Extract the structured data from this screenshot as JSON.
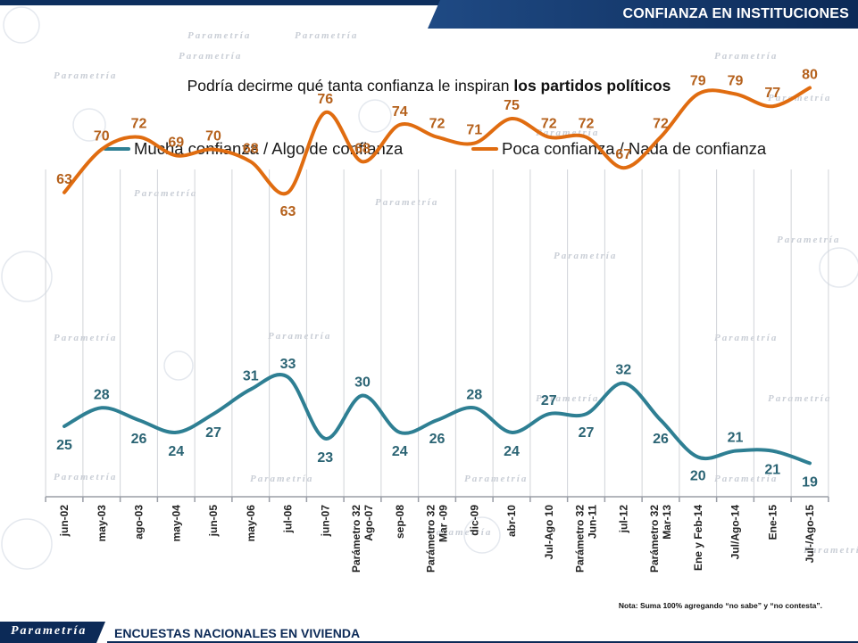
{
  "header": {
    "title": "CONFIANZA EN INSTITUCIONES"
  },
  "question": {
    "prefix": "Podría decirme qué tanta confianza le inspiran ",
    "bold": "los partidos políticos"
  },
  "legend": {
    "series1": "Mucha confianza / Algo de confianza",
    "series2": "Poca confianza / Nada de confianza"
  },
  "colors": {
    "series1": "#2e7f93",
    "series2": "#e06c10",
    "header": "#0c2a57"
  },
  "note": "Nota: Suma 100%  agregando “no sabe” y “no contesta”.",
  "footer": {
    "logo": "Parametría",
    "text": "ENCUESTAS NACIONALES EN VIVIENDA"
  },
  "watermark": "Parametría",
  "chart_data": {
    "type": "line",
    "title": "Podría decirme qué tanta confianza le inspiran los partidos políticos",
    "xlabel": "",
    "ylabel": "",
    "categories": [
      "jun-02",
      "may-03",
      "ago-03",
      "may-04",
      "jun-05",
      "may-06",
      "jul-06",
      "jun-07",
      "Parámetro 32 Ago-07",
      "sep-08",
      "Parámetro 32 Mar -09",
      "dic-09",
      "abr-10",
      "Jul-Ago 10",
      "Parámetro 32 Jun-11",
      "jul-12",
      "Parámetro 32 Mar-13",
      "Ene y Feb-14",
      "Jul/Ago-14",
      "Ene-15",
      "Jul-/Ago-15"
    ],
    "series": [
      {
        "name": "Mucha confianza / Algo de confianza",
        "values": [
          25,
          28,
          26,
          24,
          27,
          31,
          33,
          23,
          30,
          24,
          26,
          28,
          24,
          27,
          27,
          32,
          26,
          20,
          21,
          21,
          19
        ]
      },
      {
        "name": "Poca confianza / Nada de confianza",
        "values": [
          63,
          70,
          72,
          69,
          70,
          68,
          63,
          76,
          68,
          74,
          72,
          71,
          75,
          72,
          72,
          67,
          72,
          79,
          79,
          77,
          80
        ]
      }
    ],
    "grid": "vertical",
    "legend_position": "top"
  }
}
